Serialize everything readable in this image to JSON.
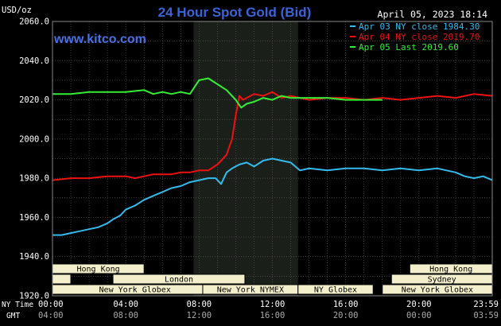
{
  "title": "24 Hour Spot Gold (Bid)",
  "watermark": "www.kitco.com",
  "timestamp": "April 05, 2023 18:14",
  "colors": {
    "background": "#000000",
    "plot": "#000000",
    "highlight": "#1b1f1a",
    "grid": "#555555",
    "axis_text": "#ffffff",
    "title": "#3b63d8",
    "watermark": "#4a70e8",
    "session_fill": "#f3efcc",
    "session_text": "#000000"
  },
  "chart_data": {
    "type": "line",
    "ylabel": "USD/oz",
    "ylim": [
      1920,
      2060
    ],
    "yticks": [
      1920,
      1940,
      1960,
      1980,
      2000,
      2020,
      2040,
      2060
    ],
    "ytick_labels": [
      "1920.0",
      "1940.0",
      "1960.0",
      "1980.0",
      "2000.0",
      "2020.0",
      "2040.0",
      "2060.0"
    ],
    "xlim": [
      0,
      24
    ],
    "xticks": [
      0,
      4,
      8,
      12,
      16,
      20,
      24
    ],
    "x_label_primary": "NY Time",
    "x_label_secondary": "GMT",
    "xtick_labels_primary": [
      "00:00",
      "04:00",
      "08:00",
      "12:00",
      "16:00",
      "20:00",
      "23:59"
    ],
    "xtick_labels_secondary": [
      "04:00",
      "08:00",
      "12:00",
      "16:00",
      "20:00",
      "00:00",
      "03:59"
    ],
    "highlight_band": [
      7.7,
      13.4
    ],
    "grid": true,
    "legend_position": "top-right",
    "series": [
      {
        "name": "Apr 03 NY close 1984.30",
        "color": "#33bbee",
        "x": [
          0,
          0.5,
          1,
          1.5,
          2,
          2.5,
          3,
          3.3,
          3.7,
          4,
          4.5,
          5,
          5.5,
          6,
          6.5,
          7,
          7.5,
          8,
          8.5,
          8.9,
          9.2,
          9.5,
          9.8,
          10.2,
          10.6,
          11,
          11.5,
          12,
          12.5,
          13,
          13.5,
          14,
          15,
          16,
          17,
          18,
          19,
          20,
          21,
          22,
          22.5,
          23,
          23.5,
          24
        ],
        "y": [
          1951,
          1951,
          1952,
          1953,
          1954,
          1955,
          1957,
          1959,
          1961,
          1964,
          1966,
          1969,
          1971,
          1973,
          1975,
          1976,
          1978,
          1979,
          1980,
          1980,
          1977,
          1983,
          1985,
          1987,
          1988,
          1986,
          1989,
          1990,
          1989,
          1988,
          1984,
          1985,
          1984,
          1985,
          1985,
          1984,
          1985,
          1984,
          1985,
          1983,
          1981,
          1980,
          1981,
          1979
        ]
      },
      {
        "name": "Apr 04 NY close 2019.70",
        "color": "#ee1111",
        "x": [
          0,
          1,
          2,
          3,
          4,
          4.5,
          5,
          5.5,
          6,
          6.5,
          7,
          7.5,
          8,
          8.5,
          9,
          9.5,
          9.8,
          10,
          10.2,
          10.4,
          10.6,
          11,
          11.5,
          12,
          12.5,
          13,
          14,
          15,
          16,
          17,
          18,
          19,
          20,
          21,
          22,
          23,
          24
        ],
        "y": [
          1979,
          1980,
          1980,
          1981,
          1981,
          1980,
          1981,
          1982,
          1982,
          1982,
          1983,
          1983,
          1984,
          1984,
          1987,
          1992,
          2000,
          2012,
          2022,
          2020,
          2021,
          2023,
          2022,
          2024,
          2021,
          2022,
          2020,
          2021,
          2021,
          2020,
          2021,
          2020,
          2021,
          2022,
          2021,
          2023,
          2022
        ]
      },
      {
        "name": "Apr 05 Last 2019.60",
        "color": "#33ee33",
        "x": [
          0,
          1,
          2,
          3,
          4,
          5,
          5.5,
          6,
          6.5,
          7,
          7.5,
          8,
          8.5,
          9,
          9.5,
          10,
          10.3,
          10.6,
          11,
          11.5,
          12,
          12.5,
          13,
          14,
          15,
          16,
          17,
          18
        ],
        "y": [
          2023,
          2023,
          2024,
          2024,
          2024,
          2025,
          2023,
          2024,
          2023,
          2024,
          2023,
          2030,
          2031,
          2028,
          2025,
          2020,
          2016,
          2018,
          2019,
          2021,
          2020,
          2022,
          2021,
          2021,
          2021,
          2020,
          2020,
          2020
        ]
      }
    ],
    "sessions": [
      {
        "label": "Hong Kong",
        "row": 0,
        "start": 0,
        "end": 5
      },
      {
        "label": "",
        "row": 1,
        "start": 0,
        "end": 1
      },
      {
        "label": "London",
        "row": 1,
        "start": 3.3,
        "end": 10.5
      },
      {
        "label": "New York Globex",
        "row": 2,
        "start": 0,
        "end": 9
      },
      {
        "label": "New York NYMEX",
        "row": 2,
        "start": 8.2,
        "end": 13.4
      },
      {
        "label": "NY Globex",
        "row": 2,
        "start": 13.4,
        "end": 17.5
      },
      {
        "label": "Hong Kong",
        "row": 0,
        "start": 19.5,
        "end": 24
      },
      {
        "label": "Sydney",
        "row": 1,
        "start": 18.5,
        "end": 24
      },
      {
        "label": "New York Globex",
        "row": 2,
        "start": 18,
        "end": 24
      }
    ]
  }
}
